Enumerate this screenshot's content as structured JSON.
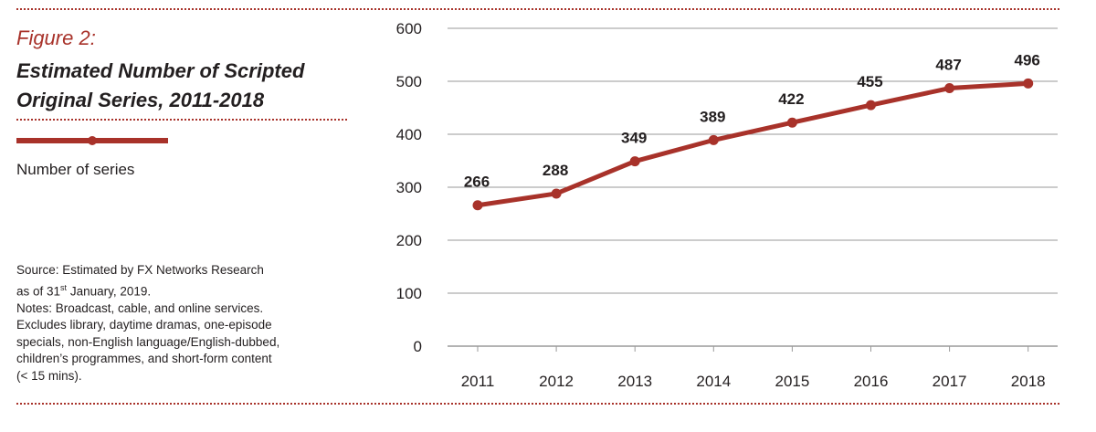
{
  "figure": {
    "number": "Figure 2:",
    "title_line1": "Estimated Number of Scripted",
    "title_line2": "Original Series, 2011-2018"
  },
  "legend": {
    "label": "Number of series"
  },
  "notes": {
    "source_line1": "Source: Estimated by FX Networks Research",
    "source_line2_pre": "as of 31",
    "source_line2_sup": "st",
    "source_line2_post": " January, 2019.",
    "notes_line1": "Notes: Broadcast, cable, and online services.",
    "notes_line2": "Excludes library, daytime dramas, one-episode",
    "notes_line3": "specials, non-English language/English-dubbed,",
    "notes_line4": "children’s programmes, and short-form content",
    "notes_line5": "(< 15 mins)."
  },
  "colors": {
    "series": "#a8322a",
    "grid": "#9a9a9a",
    "text": "#231f20"
  },
  "chart_data": {
    "type": "line",
    "title": "Estimated Number of Scripted Original Series, 2011-2018",
    "x": [
      "2011",
      "2012",
      "2013",
      "2014",
      "2015",
      "2016",
      "2017",
      "2018"
    ],
    "series": [
      {
        "name": "Number of series",
        "values": [
          266,
          288,
          349,
          389,
          422,
          455,
          487,
          496
        ]
      }
    ],
    "ylim": [
      0,
      600
    ],
    "yticks": [
      0,
      100,
      200,
      300,
      400,
      500,
      600
    ],
    "xlabel": "",
    "ylabel": "",
    "grid": true,
    "data_labels": true,
    "legend_position": "left"
  }
}
